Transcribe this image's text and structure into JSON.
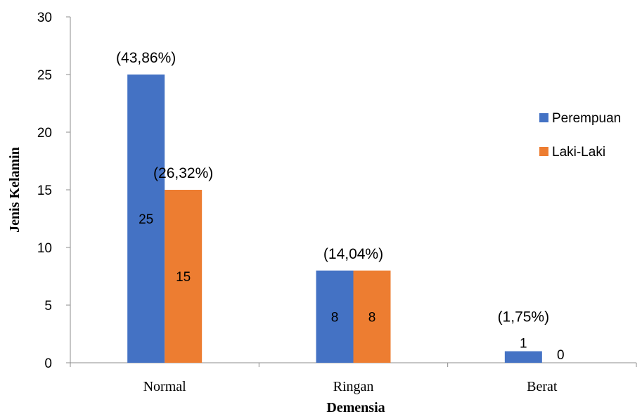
{
  "chart_data": {
    "type": "bar",
    "title": "",
    "xlabel": "Demensia",
    "ylabel": "Jenis Kelamin",
    "categories": [
      "Normal",
      "Ringan",
      "Berat"
    ],
    "series": [
      {
        "name": "Perempuan",
        "values": [
          25,
          8,
          1
        ],
        "color": "#4472C4"
      },
      {
        "name": "Laki-Laki",
        "values": [
          15,
          8,
          0
        ],
        "color": "#ED7D31"
      }
    ],
    "data_labels": [
      [
        "25",
        "8",
        "1"
      ],
      [
        "15",
        "8",
        "0"
      ]
    ],
    "annotations": [
      {
        "text": "(43,86%)",
        "category": "Normal",
        "series": "Perempuan"
      },
      {
        "text": "(26,32%)",
        "category": "Normal",
        "series": "Laki-Laki"
      },
      {
        "text": "(14,04%)",
        "category": "Ringan",
        "series": "both"
      },
      {
        "text": "(1,75%)",
        "category": "Berat",
        "series": "Perempuan"
      }
    ],
    "ylim": [
      0,
      30
    ],
    "yticks": [
      "0",
      "5",
      "10",
      "15",
      "20",
      "25",
      "30"
    ],
    "grid": false,
    "legend_position": "right"
  }
}
